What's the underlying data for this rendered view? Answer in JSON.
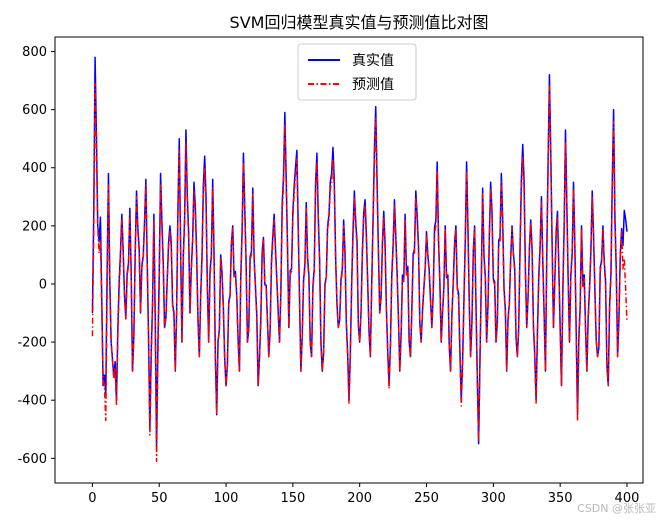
{
  "chart_data": {
    "type": "line",
    "title": "SVM回归模型真实值与预测值比对图",
    "xlabel": "",
    "ylabel": "",
    "xlim": [
      -28,
      412
    ],
    "ylim": [
      -685,
      850
    ],
    "xticks": [
      0,
      50,
      100,
      150,
      200,
      250,
      300,
      350,
      400
    ],
    "yticks": [
      -600,
      -400,
      -200,
      0,
      200,
      400,
      600,
      800
    ],
    "grid": false,
    "legend_position": "top-center",
    "n_points": 401,
    "series": [
      {
        "name": "真实值",
        "color": "#0000ff",
        "style": "solid",
        "keypoints": [
          [
            0,
            -100
          ],
          [
            2,
            780
          ],
          [
            4,
            200
          ],
          [
            6,
            230
          ],
          [
            8,
            -350
          ],
          [
            10,
            -380
          ],
          [
            12,
            380
          ],
          [
            14,
            -200
          ],
          [
            18,
            -400
          ],
          [
            22,
            240
          ],
          [
            25,
            -120
          ],
          [
            28,
            260
          ],
          [
            30,
            -300
          ],
          [
            33,
            320
          ],
          [
            36,
            -100
          ],
          [
            40,
            360
          ],
          [
            43,
            -500
          ],
          [
            46,
            240
          ],
          [
            48,
            -560
          ],
          [
            51,
            380
          ],
          [
            54,
            -150
          ],
          [
            58,
            200
          ],
          [
            62,
            -300
          ],
          [
            65,
            500
          ],
          [
            67,
            -200
          ],
          [
            70,
            530
          ],
          [
            73,
            -100
          ],
          [
            76,
            350
          ],
          [
            80,
            -250
          ],
          [
            84,
            440
          ],
          [
            87,
            -200
          ],
          [
            90,
            360
          ],
          [
            93,
            -450
          ],
          [
            96,
            100
          ],
          [
            100,
            -350
          ],
          [
            105,
            200
          ],
          [
            110,
            -300
          ],
          [
            113,
            450
          ],
          [
            116,
            -200
          ],
          [
            120,
            330
          ],
          [
            124,
            -350
          ],
          [
            128,
            160
          ],
          [
            132,
            -250
          ],
          [
            136,
            240
          ],
          [
            140,
            -200
          ],
          [
            144,
            590
          ],
          [
            147,
            -150
          ],
          [
            150,
            250
          ],
          [
            153,
            460
          ],
          [
            156,
            -300
          ],
          [
            160,
            280
          ],
          [
            164,
            -250
          ],
          [
            168,
            450
          ],
          [
            172,
            -300
          ],
          [
            176,
            200
          ],
          [
            180,
            470
          ],
          [
            184,
            -150
          ],
          [
            188,
            220
          ],
          [
            192,
            -400
          ],
          [
            196,
            320
          ],
          [
            200,
            -200
          ],
          [
            204,
            290
          ],
          [
            208,
            -250
          ],
          [
            212,
            610
          ],
          [
            215,
            -100
          ],
          [
            218,
            250
          ],
          [
            222,
            -350
          ],
          [
            226,
            290
          ],
          [
            230,
            -300
          ],
          [
            234,
            240
          ],
          [
            238,
            -250
          ],
          [
            242,
            320
          ],
          [
            246,
            -200
          ],
          [
            250,
            180
          ],
          [
            254,
            -150
          ],
          [
            258,
            420
          ],
          [
            261,
            -200
          ],
          [
            264,
            200
          ],
          [
            268,
            -300
          ],
          [
            272,
            200
          ],
          [
            276,
            -400
          ],
          [
            280,
            420
          ],
          [
            283,
            -250
          ],
          [
            286,
            200
          ],
          [
            289,
            -550
          ],
          [
            292,
            330
          ],
          [
            295,
            -200
          ],
          [
            298,
            350
          ],
          [
            302,
            -200
          ],
          [
            306,
            380
          ],
          [
            310,
            -300
          ],
          [
            314,
            200
          ],
          [
            318,
            -250
          ],
          [
            322,
            480
          ],
          [
            325,
            -150
          ],
          [
            328,
            220
          ],
          [
            332,
            -400
          ],
          [
            336,
            300
          ],
          [
            339,
            -300
          ],
          [
            342,
            720
          ],
          [
            345,
            -150
          ],
          [
            348,
            250
          ],
          [
            351,
            -350
          ],
          [
            354,
            530
          ],
          [
            357,
            -200
          ],
          [
            360,
            350
          ],
          [
            363,
            -450
          ],
          [
            366,
            200
          ],
          [
            370,
            -300
          ],
          [
            374,
            320
          ],
          [
            378,
            -250
          ],
          [
            382,
            200
          ],
          [
            386,
            -350
          ],
          [
            390,
            600
          ],
          [
            393,
            -250
          ],
          [
            396,
            190
          ],
          [
            400,
            180
          ]
        ]
      },
      {
        "name": "预测值",
        "color": "#ff0000",
        "style": "dashdot",
        "keypoints": [
          [
            0,
            -180
          ],
          [
            2,
            690
          ],
          [
            4,
            190
          ],
          [
            6,
            150
          ],
          [
            8,
            -330
          ],
          [
            10,
            -470
          ],
          [
            12,
            340
          ],
          [
            14,
            -200
          ],
          [
            18,
            -420
          ],
          [
            22,
            220
          ],
          [
            25,
            -120
          ],
          [
            28,
            240
          ],
          [
            30,
            -300
          ],
          [
            33,
            300
          ],
          [
            36,
            -100
          ],
          [
            40,
            340
          ],
          [
            43,
            -520
          ],
          [
            46,
            220
          ],
          [
            48,
            -610
          ],
          [
            51,
            340
          ],
          [
            54,
            -150
          ],
          [
            58,
            180
          ],
          [
            62,
            -300
          ],
          [
            65,
            460
          ],
          [
            67,
            -200
          ],
          [
            70,
            490
          ],
          [
            73,
            -100
          ],
          [
            76,
            320
          ],
          [
            80,
            -250
          ],
          [
            84,
            400
          ],
          [
            87,
            -200
          ],
          [
            90,
            330
          ],
          [
            93,
            -450
          ],
          [
            96,
            90
          ],
          [
            100,
            -350
          ],
          [
            105,
            190
          ],
          [
            110,
            -300
          ],
          [
            113,
            420
          ],
          [
            116,
            -200
          ],
          [
            120,
            310
          ],
          [
            124,
            -350
          ],
          [
            128,
            150
          ],
          [
            132,
            -250
          ],
          [
            136,
            220
          ],
          [
            140,
            -200
          ],
          [
            144,
            550
          ],
          [
            147,
            -150
          ],
          [
            150,
            230
          ],
          [
            153,
            430
          ],
          [
            156,
            -300
          ],
          [
            160,
            260
          ],
          [
            164,
            -250
          ],
          [
            168,
            420
          ],
          [
            172,
            -300
          ],
          [
            176,
            190
          ],
          [
            180,
            430
          ],
          [
            184,
            -150
          ],
          [
            188,
            200
          ],
          [
            192,
            -410
          ],
          [
            196,
            300
          ],
          [
            200,
            -200
          ],
          [
            204,
            270
          ],
          [
            208,
            -250
          ],
          [
            212,
            570
          ],
          [
            215,
            -100
          ],
          [
            218,
            230
          ],
          [
            222,
            -360
          ],
          [
            226,
            270
          ],
          [
            230,
            -300
          ],
          [
            234,
            220
          ],
          [
            238,
            -250
          ],
          [
            242,
            300
          ],
          [
            246,
            -200
          ],
          [
            250,
            170
          ],
          [
            254,
            -150
          ],
          [
            258,
            390
          ],
          [
            261,
            -200
          ],
          [
            264,
            190
          ],
          [
            268,
            -300
          ],
          [
            272,
            190
          ],
          [
            276,
            -420
          ],
          [
            280,
            390
          ],
          [
            283,
            -250
          ],
          [
            286,
            190
          ],
          [
            289,
            -540
          ],
          [
            292,
            310
          ],
          [
            295,
            -200
          ],
          [
            298,
            330
          ],
          [
            302,
            -200
          ],
          [
            306,
            350
          ],
          [
            310,
            -300
          ],
          [
            314,
            190
          ],
          [
            318,
            -250
          ],
          [
            322,
            440
          ],
          [
            325,
            -150
          ],
          [
            328,
            210
          ],
          [
            332,
            -410
          ],
          [
            336,
            280
          ],
          [
            339,
            -300
          ],
          [
            342,
            680
          ],
          [
            345,
            -150
          ],
          [
            348,
            230
          ],
          [
            351,
            -350
          ],
          [
            354,
            490
          ],
          [
            357,
            -200
          ],
          [
            360,
            330
          ],
          [
            363,
            -470
          ],
          [
            366,
            190
          ],
          [
            370,
            -300
          ],
          [
            374,
            300
          ],
          [
            378,
            -250
          ],
          [
            382,
            190
          ],
          [
            386,
            -350
          ],
          [
            390,
            560
          ],
          [
            393,
            -250
          ],
          [
            396,
            180
          ],
          [
            400,
            -130
          ]
        ]
      }
    ]
  },
  "watermark": "CSDN @张张亚"
}
